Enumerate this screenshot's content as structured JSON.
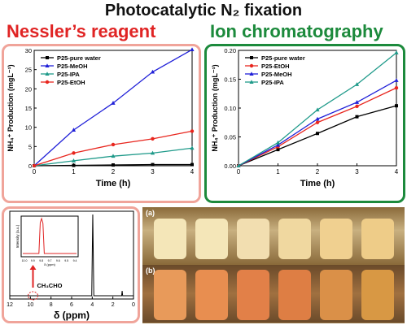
{
  "main_title": "Photocatalytic N₂ fixation",
  "left_heading": "Nessler’s reagent",
  "right_heading": "Ion chromatography",
  "colors": {
    "black": "#000000",
    "red": "#e8261e",
    "blue": "#2020d8",
    "green": "#1f9a8a",
    "nessler_accent": "#e02424",
    "ic_accent": "#1c8a3c"
  },
  "chart_data": [
    {
      "type": "line",
      "xlabel": "Time (h)",
      "ylabel": "NH₄⁺ Production (mgL⁻¹)",
      "xlim": [
        0,
        4
      ],
      "ylim": [
        0,
        30
      ],
      "xticks": [
        0,
        1,
        2,
        3,
        4
      ],
      "yticks": [
        0,
        5,
        10,
        15,
        20,
        25,
        30
      ],
      "x": [
        0,
        1,
        2,
        3,
        4
      ],
      "series": [
        {
          "name": "P25-pure water",
          "color": "#000000",
          "marker": "square",
          "values": [
            0,
            0.1,
            0.2,
            0.3,
            0.3
          ]
        },
        {
          "name": "P25-MeOH",
          "color": "#2020d8",
          "marker": "triangle",
          "values": [
            0,
            9.3,
            16.3,
            24.4,
            30.2
          ]
        },
        {
          "name": "P25-IPA",
          "color": "#1f9a8a",
          "marker": "triangle",
          "values": [
            0,
            1.3,
            2.5,
            3.3,
            4.6
          ]
        },
        {
          "name": "P25-EtOH",
          "color": "#e8261e",
          "marker": "circle",
          "values": [
            0,
            3.3,
            5.5,
            7.0,
            9.0
          ]
        }
      ],
      "legend": "top-left"
    },
    {
      "type": "line",
      "xlabel": "Time (h)",
      "ylabel": "NH₄⁺ Production (mgL⁻¹)",
      "xlim": [
        0,
        4
      ],
      "ylim": [
        0,
        0.2
      ],
      "xticks": [
        0,
        1,
        2,
        3,
        4
      ],
      "yticks": [
        "0.00",
        "0.05",
        "0.10",
        "0.15",
        "0.20"
      ],
      "x": [
        0,
        1,
        2,
        3,
        4
      ],
      "series": [
        {
          "name": "P25-pure water",
          "color": "#000000",
          "marker": "square",
          "values": [
            0,
            0.028,
            0.056,
            0.085,
            0.104
          ]
        },
        {
          "name": "P25-EtOH",
          "color": "#e8261e",
          "marker": "circle",
          "values": [
            0,
            0.033,
            0.075,
            0.103,
            0.135
          ]
        },
        {
          "name": "P25-MeOH",
          "color": "#2020d8",
          "marker": "triangle",
          "values": [
            0,
            0.036,
            0.081,
            0.11,
            0.148
          ]
        },
        {
          "name": "P25-IPA",
          "color": "#1f9a8a",
          "marker": "triangle",
          "values": [
            0,
            0.04,
            0.097,
            0.141,
            0.196
          ]
        }
      ],
      "legend": "top-left"
    },
    {
      "type": "line",
      "xlabel": "δ (ppm)",
      "xticks": [
        12,
        10,
        8,
        6,
        4,
        2,
        0
      ],
      "annotation": "CH₃CHO",
      "inset": {
        "ylabel": "Intensity (a.u.)",
        "xlabel": "δ (ppm)",
        "xticks": [
          "10.0",
          "9.9",
          "9.8",
          "9.7",
          "9.6",
          "9.5",
          "9.4"
        ]
      }
    }
  ],
  "photos": {
    "panel_a_label": "(a)",
    "panel_b_label": "(b)",
    "vials_a": [
      "#f4e6b8",
      "#f4e6b8",
      "#f2deb0",
      "#f0d8a0",
      "#f0d090",
      "#eecc88"
    ],
    "vials_b": [
      "#e89a5a",
      "#e88e50",
      "#e28048",
      "#de7e44",
      "#da9048",
      "#d89844"
    ]
  }
}
